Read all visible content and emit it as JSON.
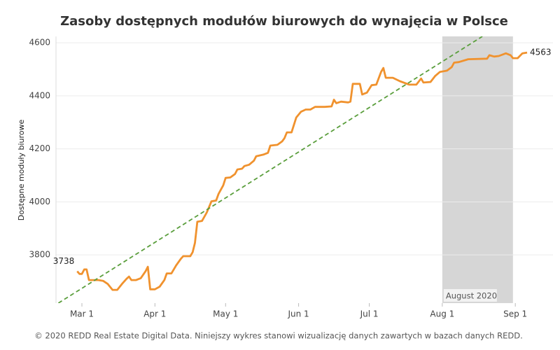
{
  "chart_data": {
    "type": "line",
    "title": "Zasoby dostępnych modułów biurowych do wynajęcia w Polsce",
    "y_label": "Dostępne moduły biurowe",
    "footer": "© 2020 REDD Real Estate Digital Data. Niniejszy wykres stanowi wizualizację danych zawartych w bazach danych REDD.",
    "xlim": [
      "Feb 18",
      "Sep 17"
    ],
    "xticks": [
      "Mar 1",
      "Apr 1",
      "May 1",
      "Jun 1",
      "Jul 1",
      "Aug 1",
      "Sep 1"
    ],
    "ylim": [
      3618,
      4624
    ],
    "yticks": [
      3800,
      4000,
      4200,
      4400,
      4600
    ],
    "grid": true,
    "shade": {
      "label": "August 2020",
      "x": [
        "Aug 1",
        "Aug 31"
      ],
      "color": "#d6d6d6"
    },
    "series": [
      {
        "color": "#f0922e",
        "dash": false,
        "x": [
          "Feb 27",
          "Feb 28",
          "Mar 1",
          "Mar 2",
          "Mar 3",
          "Mar 4",
          "Mar 8",
          "Mar 10",
          "Mar 12",
          "Mar 14",
          "Mar 16",
          "Mar 18",
          "Mar 20",
          "Mar 21",
          "Mar 22",
          "Mar 24",
          "Mar 26",
          "Mar 28",
          "Mar 29",
          "Mar 30",
          "Apr 1",
          "Apr 3",
          "Apr 5",
          "Apr 6",
          "Apr 8",
          "Apr 10",
          "Apr 12",
          "Apr 13",
          "Apr 16",
          "Apr 17",
          "Apr 18",
          "Apr 19",
          "Apr 21",
          "Apr 23",
          "Apr 25",
          "Apr 27",
          "Apr 28",
          "Apr 30",
          "May 1",
          "May 3",
          "May 5",
          "May 6",
          "May 8",
          "May 9",
          "May 11",
          "May 13",
          "May 14",
          "May 17",
          "May 19",
          "May 20",
          "May 23",
          "May 25",
          "May 26",
          "May 27",
          "May 29",
          "May 31",
          "Jun 2",
          "Jun 4",
          "Jun 6",
          "Jun 8",
          "Jun 12",
          "Jun 15",
          "Jun 16",
          "Jun 17",
          "Jun 19",
          "Jun 22",
          "Jun 23",
          "Jun 24",
          "Jun 27",
          "Jun 28",
          "Jun 30",
          "Jul 2",
          "Jul 4",
          "Jul 6",
          "Jul 7",
          "Jul 8",
          "Jul 11",
          "Jul 14",
          "Jul 18",
          "Jul 21",
          "Jul 23",
          "Jul 24",
          "Jul 27",
          "Jul 29",
          "Jul 31",
          "Aug 3",
          "Aug 5",
          "Aug 6",
          "Aug 8",
          "Aug 12",
          "Aug 20",
          "Aug 21",
          "Aug 23",
          "Aug 25",
          "Aug 28",
          "Aug 30",
          "Aug 31",
          "Sep 2",
          "Sep 4",
          "Sep 6"
        ],
        "values": [
          3738,
          3728,
          3728,
          3745,
          3745,
          3705,
          3705,
          3702,
          3690,
          3668,
          3668,
          3690,
          3710,
          3718,
          3705,
          3705,
          3712,
          3738,
          3755,
          3670,
          3670,
          3680,
          3705,
          3730,
          3730,
          3760,
          3785,
          3795,
          3795,
          3810,
          3845,
          3925,
          3928,
          3960,
          4002,
          4005,
          4030,
          4062,
          4090,
          4092,
          4105,
          4122,
          4125,
          4135,
          4140,
          4155,
          4172,
          4178,
          4185,
          4212,
          4215,
          4228,
          4240,
          4262,
          4262,
          4318,
          4340,
          4348,
          4348,
          4358,
          4358,
          4360,
          4385,
          4372,
          4378,
          4375,
          4378,
          4445,
          4445,
          4405,
          4412,
          4440,
          4442,
          4490,
          4505,
          4468,
          4468,
          4455,
          4442,
          4442,
          4465,
          4450,
          4452,
          4475,
          4490,
          4495,
          4508,
          4525,
          4527,
          4538,
          4540,
          4553,
          4548,
          4550,
          4560,
          4553,
          4542,
          4542,
          4560,
          4563
        ]
      },
      {
        "color": "#5a9e3c",
        "dash": true,
        "x": [
          "Feb 19",
          "Aug 18"
        ],
        "values": [
          3618,
          4624
        ]
      }
    ]
  }
}
